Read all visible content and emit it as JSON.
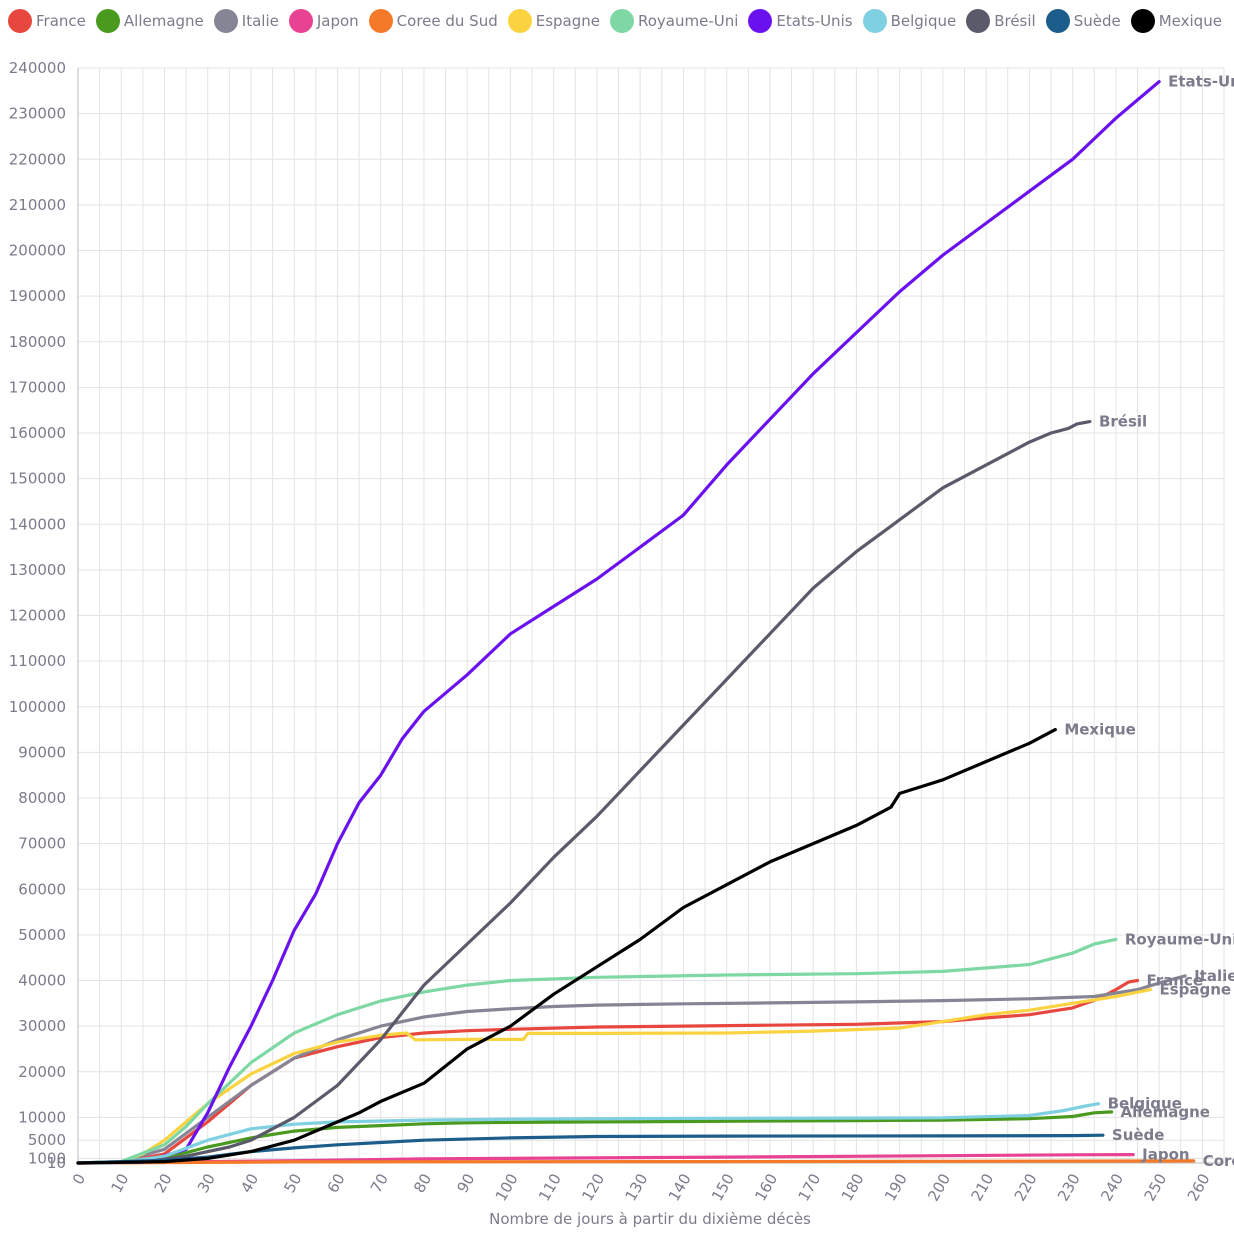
{
  "chart_data": {
    "type": "line",
    "xlabel": "Nombre de jours à partir du dixième décès",
    "ylabel": "",
    "x_ticks": [
      0,
      10,
      20,
      30,
      40,
      50,
      60,
      70,
      80,
      90,
      100,
      110,
      120,
      130,
      140,
      150,
      160,
      170,
      180,
      190,
      200,
      210,
      220,
      230,
      240,
      250,
      260
    ],
    "y_ticks": [
      10,
      1000,
      5000,
      10000,
      20000,
      30000,
      40000,
      50000,
      60000,
      70000,
      80000,
      90000,
      100000,
      110000,
      120000,
      130000,
      140000,
      150000,
      160000,
      170000,
      180000,
      190000,
      200000,
      210000,
      220000,
      230000,
      240000
    ],
    "xlim": [
      0,
      265
    ],
    "ylim": [
      0,
      240000
    ],
    "grid": true,
    "legend_position": "top",
    "series": [
      {
        "name": "France",
        "color": "#e8473f",
        "end_label": "France",
        "points": [
          [
            0,
            10
          ],
          [
            10,
            100
          ],
          [
            20,
            2000
          ],
          [
            30,
            9000
          ],
          [
            40,
            17000
          ],
          [
            50,
            23000
          ],
          [
            60,
            25500
          ],
          [
            70,
            27500
          ],
          [
            80,
            28500
          ],
          [
            90,
            29000
          ],
          [
            100,
            29300
          ],
          [
            120,
            29800
          ],
          [
            140,
            30000
          ],
          [
            160,
            30200
          ],
          [
            180,
            30400
          ],
          [
            200,
            31000
          ],
          [
            210,
            31800
          ],
          [
            220,
            32500
          ],
          [
            230,
            34000
          ],
          [
            236,
            36000
          ],
          [
            240,
            38000
          ],
          [
            243,
            39700
          ],
          [
            245,
            40000
          ]
        ]
      },
      {
        "name": "Allemagne",
        "color": "#4a9a20",
        "end_label": "Allemagne",
        "points": [
          [
            0,
            10
          ],
          [
            10,
            60
          ],
          [
            20,
            1000
          ],
          [
            30,
            3500
          ],
          [
            40,
            5500
          ],
          [
            50,
            7000
          ],
          [
            60,
            7800
          ],
          [
            70,
            8200
          ],
          [
            80,
            8600
          ],
          [
            90,
            8800
          ],
          [
            100,
            8900
          ],
          [
            120,
            9000
          ],
          [
            140,
            9100
          ],
          [
            160,
            9200
          ],
          [
            180,
            9300
          ],
          [
            200,
            9400
          ],
          [
            220,
            9700
          ],
          [
            230,
            10200
          ],
          [
            235,
            11000
          ],
          [
            239,
            11200
          ]
        ]
      },
      {
        "name": "Italie",
        "color": "#858595",
        "end_label": "Italie",
        "points": [
          [
            0,
            10
          ],
          [
            10,
            300
          ],
          [
            20,
            3000
          ],
          [
            30,
            10000
          ],
          [
            40,
            17000
          ],
          [
            50,
            23000
          ],
          [
            60,
            27000
          ],
          [
            70,
            30000
          ],
          [
            80,
            32000
          ],
          [
            90,
            33200
          ],
          [
            100,
            33800
          ],
          [
            110,
            34300
          ],
          [
            120,
            34600
          ],
          [
            140,
            34900
          ],
          [
            160,
            35100
          ],
          [
            180,
            35300
          ],
          [
            200,
            35600
          ],
          [
            220,
            36000
          ],
          [
            235,
            36500
          ],
          [
            245,
            38000
          ],
          [
            252,
            40000
          ],
          [
            256,
            41000
          ]
        ]
      },
      {
        "name": "Japon",
        "color": "#e84393",
        "end_label": "Japon",
        "points": [
          [
            0,
            10
          ],
          [
            50,
            500
          ],
          [
            80,
            900
          ],
          [
            100,
            1000
          ],
          [
            150,
            1300
          ],
          [
            200,
            1600
          ],
          [
            230,
            1800
          ],
          [
            244,
            1850
          ]
        ]
      },
      {
        "name": "Coree du Sud",
        "color": "#f47a2a",
        "end_label": "Coree",
        "points": [
          [
            0,
            10
          ],
          [
            50,
            250
          ],
          [
            100,
            290
          ],
          [
            150,
            310
          ],
          [
            200,
            370
          ],
          [
            250,
            440
          ],
          [
            258,
            460
          ]
        ]
      },
      {
        "name": "Espagne",
        "color": "#fbd341",
        "end_label": "Espagne",
        "points": [
          [
            0,
            10
          ],
          [
            10,
            200
          ],
          [
            15,
            2000
          ],
          [
            20,
            5000
          ],
          [
            25,
            9000
          ],
          [
            30,
            13000
          ],
          [
            40,
            19500
          ],
          [
            50,
            24000
          ],
          [
            60,
            26500
          ],
          [
            70,
            28000
          ],
          [
            76,
            28500
          ],
          [
            78,
            27000
          ],
          [
            90,
            27100
          ],
          [
            100,
            27100
          ],
          [
            103,
            27100
          ],
          [
            104,
            28400
          ],
          [
            120,
            28400
          ],
          [
            150,
            28500
          ],
          [
            170,
            28900
          ],
          [
            190,
            29600
          ],
          [
            200,
            31000
          ],
          [
            210,
            32500
          ],
          [
            220,
            33500
          ],
          [
            230,
            35000
          ],
          [
            240,
            36500
          ],
          [
            248,
            38000
          ]
        ]
      },
      {
        "name": "Royaume-Uni",
        "color": "#7ed8a4",
        "end_label": "Royaume-Uni",
        "points": [
          [
            0,
            10
          ],
          [
            10,
            300
          ],
          [
            20,
            4000
          ],
          [
            25,
            8000
          ],
          [
            30,
            13000
          ],
          [
            40,
            22000
          ],
          [
            50,
            28500
          ],
          [
            60,
            32500
          ],
          [
            70,
            35500
          ],
          [
            80,
            37500
          ],
          [
            90,
            39000
          ],
          [
            100,
            40000
          ],
          [
            120,
            40700
          ],
          [
            150,
            41200
          ],
          [
            180,
            41500
          ],
          [
            200,
            42000
          ],
          [
            220,
            43500
          ],
          [
            230,
            46000
          ],
          [
            235,
            48000
          ],
          [
            240,
            49000
          ]
        ]
      },
      {
        "name": "Etats-Unis",
        "color": "#6a11f0",
        "end_label": "Etats-Unis",
        "points": [
          [
            0,
            10
          ],
          [
            15,
            200
          ],
          [
            25,
            3000
          ],
          [
            30,
            11000
          ],
          [
            35,
            21000
          ],
          [
            40,
            30000
          ],
          [
            45,
            40000
          ],
          [
            50,
            51000
          ],
          [
            55,
            59000
          ],
          [
            60,
            70000
          ],
          [
            65,
            79000
          ],
          [
            70,
            85000
          ],
          [
            75,
            93000
          ],
          [
            80,
            99000
          ],
          [
            90,
            107000
          ],
          [
            100,
            116000
          ],
          [
            110,
            122000
          ],
          [
            120,
            128000
          ],
          [
            130,
            135000
          ],
          [
            140,
            142000
          ],
          [
            150,
            153000
          ],
          [
            160,
            163000
          ],
          [
            170,
            173000
          ],
          [
            180,
            182000
          ],
          [
            190,
            191000
          ],
          [
            200,
            199000
          ],
          [
            210,
            206000
          ],
          [
            220,
            213000
          ],
          [
            230,
            220000
          ],
          [
            240,
            229000
          ],
          [
            245,
            233000
          ],
          [
            250,
            237000
          ]
        ]
      },
      {
        "name": "Belgique",
        "color": "#7fd0e0",
        "end_label": "Belgique",
        "points": [
          [
            0,
            10
          ],
          [
            10,
            100
          ],
          [
            20,
            1500
          ],
          [
            30,
            5000
          ],
          [
            40,
            7500
          ],
          [
            50,
            8500
          ],
          [
            60,
            9000
          ],
          [
            80,
            9400
          ],
          [
            100,
            9600
          ],
          [
            120,
            9700
          ],
          [
            150,
            9800
          ],
          [
            180,
            9850
          ],
          [
            200,
            9900
          ],
          [
            220,
            10400
          ],
          [
            228,
            11500
          ],
          [
            233,
            12500
          ],
          [
            236,
            13000
          ]
        ]
      },
      {
        "name": "Brésil",
        "color": "#5a5a6a",
        "end_label": "Brésil",
        "points": [
          [
            0,
            10
          ],
          [
            15,
            200
          ],
          [
            25,
            1500
          ],
          [
            35,
            3500
          ],
          [
            40,
            5000
          ],
          [
            50,
            10000
          ],
          [
            60,
            17000
          ],
          [
            70,
            27000
          ],
          [
            80,
            39000
          ],
          [
            90,
            48000
          ],
          [
            100,
            57000
          ],
          [
            110,
            67000
          ],
          [
            120,
            76000
          ],
          [
            130,
            86000
          ],
          [
            140,
            96000
          ],
          [
            150,
            106000
          ],
          [
            160,
            116000
          ],
          [
            170,
            126000
          ],
          [
            180,
            134000
          ],
          [
            190,
            141000
          ],
          [
            200,
            148000
          ],
          [
            210,
            153000
          ],
          [
            220,
            158000
          ],
          [
            225,
            160000
          ],
          [
            229,
            161000
          ],
          [
            231,
            162000
          ],
          [
            234,
            162500
          ]
        ]
      },
      {
        "name": "Suède",
        "color": "#1d5d8c",
        "end_label": "Suède",
        "points": [
          [
            0,
            10
          ],
          [
            20,
            600
          ],
          [
            30,
            1300
          ],
          [
            40,
            2500
          ],
          [
            50,
            3300
          ],
          [
            60,
            4000
          ],
          [
            70,
            4500
          ],
          [
            80,
            5000
          ],
          [
            100,
            5500
          ],
          [
            120,
            5800
          ],
          [
            150,
            5900
          ],
          [
            200,
            5950
          ],
          [
            230,
            6000
          ],
          [
            237,
            6100
          ]
        ]
      },
      {
        "name": "Mexique",
        "color": "#000000",
        "end_label": "Mexique",
        "points": [
          [
            0,
            10
          ],
          [
            20,
            300
          ],
          [
            30,
            1000
          ],
          [
            40,
            2500
          ],
          [
            50,
            5000
          ],
          [
            60,
            9000
          ],
          [
            65,
            11000
          ],
          [
            70,
            13500
          ],
          [
            80,
            17500
          ],
          [
            90,
            25000
          ],
          [
            100,
            30000
          ],
          [
            110,
            37000
          ],
          [
            120,
            43000
          ],
          [
            130,
            49000
          ],
          [
            140,
            56000
          ],
          [
            150,
            61000
          ],
          [
            160,
            66000
          ],
          [
            170,
            70000
          ],
          [
            180,
            74000
          ],
          [
            188,
            78000
          ],
          [
            190,
            81000
          ],
          [
            195,
            82500
          ],
          [
            200,
            84000
          ],
          [
            210,
            88000
          ],
          [
            220,
            92000
          ],
          [
            226,
            95000
          ]
        ]
      }
    ]
  }
}
